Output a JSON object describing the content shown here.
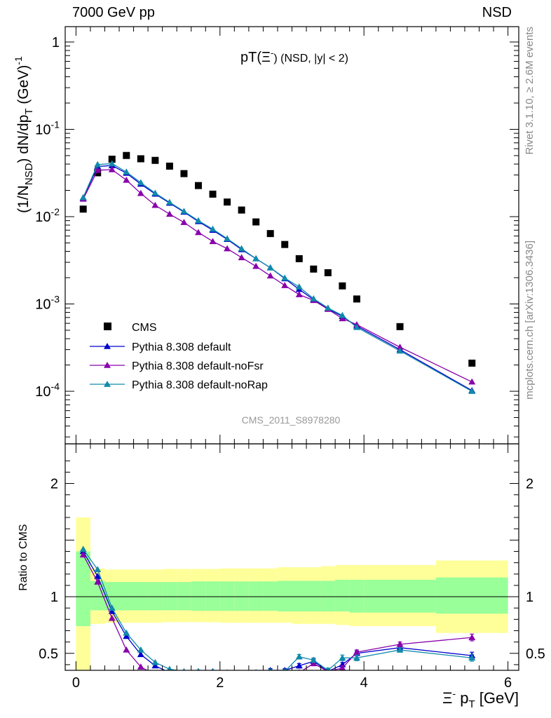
{
  "header": {
    "left": "7000 GeV pp",
    "right": "NSD"
  },
  "side_text": {
    "rivet": "Rivet 3.1.10, ≥ 2.6M events",
    "site": "mcplots.cern.ch [arXiv:1306.3436]"
  },
  "chart_data": [
    {
      "panel": "main",
      "type": "scatter",
      "title_main": "pT(Ξ",
      "title_sup": "-",
      "title_rest": ") (NSD, |y| < 2)",
      "ylabel_pre": "(1/N",
      "ylabel_sub": "NSD",
      "ylabel_mid": ") dN/dp",
      "ylabel_sub2": "T",
      "ylabel_post": " (GeV)",
      "ylabel_sup": "-1",
      "watermark": "CMS_2011_S8978280",
      "y_scale": "log",
      "xlim": [
        -0.15,
        6.15
      ],
      "ylim": [
        2.5e-05,
        1.5
      ],
      "y_ticks": [
        {
          "value": 0.0001,
          "base": "10",
          "exp": "-4"
        },
        {
          "value": 0.001,
          "base": "10",
          "exp": "-3"
        },
        {
          "value": 0.01,
          "base": "10",
          "exp": "-2"
        },
        {
          "value": 0.1,
          "base": "10",
          "exp": "-1"
        },
        {
          "value": 1,
          "base": "1",
          "exp": ""
        }
      ],
      "legend_position": "bottom-left",
      "series": [
        {
          "name": "CMS",
          "color": "#000000",
          "marker": "square",
          "line": false,
          "x": [
            0.1,
            0.3,
            0.5,
            0.7,
            0.9,
            1.1,
            1.3,
            1.5,
            1.7,
            1.9,
            2.1,
            2.3,
            2.5,
            2.7,
            2.9,
            3.1,
            3.3,
            3.5,
            3.7,
            3.9,
            4.5,
            5.5
          ],
          "y": [
            0.0122,
            0.0318,
            0.0455,
            0.0502,
            0.046,
            0.0441,
            0.0379,
            0.0311,
            0.0227,
            0.0181,
            0.0147,
            0.0119,
            0.0087,
            0.0064,
            0.0048,
            0.0033,
            0.00251,
            0.00228,
            0.00161,
            0.00114,
            0.00055,
            0.00021
          ]
        },
        {
          "name": "Pythia 8.308 default",
          "color": "#0000cc",
          "marker": "triangle",
          "line": true,
          "x": [
            0.1,
            0.3,
            0.5,
            0.7,
            0.9,
            1.1,
            1.3,
            1.5,
            1.7,
            1.9,
            2.1,
            2.3,
            2.5,
            2.7,
            2.9,
            3.1,
            3.3,
            3.5,
            3.7,
            3.9,
            4.5,
            5.5
          ],
          "y": [
            0.0163,
            0.0375,
            0.0385,
            0.0315,
            0.0236,
            0.0182,
            0.0143,
            0.0113,
            0.0088,
            0.007,
            0.0055,
            0.0042,
            0.0033,
            0.0026,
            0.00195,
            0.00147,
            0.00112,
            0.00088,
            0.00072,
            0.00056,
            0.0003,
            0.000102
          ]
        },
        {
          "name": "Pythia 8.308 default-noFsr",
          "color": "#8800aa",
          "marker": "triangle",
          "line": true,
          "x": [
            0.1,
            0.3,
            0.5,
            0.7,
            0.9,
            1.1,
            1.3,
            1.5,
            1.7,
            1.9,
            2.1,
            2.3,
            2.5,
            2.7,
            2.9,
            3.1,
            3.3,
            3.5,
            3.7,
            3.9,
            4.5,
            5.5
          ],
          "y": [
            0.0159,
            0.034,
            0.0346,
            0.0262,
            0.0185,
            0.0135,
            0.0107,
            0.0086,
            0.0066,
            0.0052,
            0.0043,
            0.0034,
            0.0027,
            0.0021,
            0.00163,
            0.00128,
            0.0011,
            0.00087,
            0.00068,
            0.00058,
            0.00032,
            0.000128
          ]
        },
        {
          "name": "Pythia 8.308 default-noRap",
          "color": "#118aaa",
          "marker": "triangle",
          "line": true,
          "x": [
            0.1,
            0.3,
            0.5,
            0.7,
            0.9,
            1.1,
            1.3,
            1.5,
            1.7,
            1.9,
            2.1,
            2.3,
            2.5,
            2.7,
            2.9,
            3.1,
            3.3,
            3.5,
            3.7,
            3.9,
            4.5,
            5.5
          ],
          "y": [
            0.0166,
            0.0395,
            0.0405,
            0.0325,
            0.0245,
            0.0186,
            0.0146,
            0.0115,
            0.009,
            0.0072,
            0.0056,
            0.0043,
            0.0033,
            0.0026,
            0.00198,
            0.00157,
            0.00115,
            0.0009,
            0.00074,
            0.00054,
            0.00029,
            0.0001
          ]
        }
      ]
    },
    {
      "panel": "ratio",
      "type": "line",
      "ylabel": "Ratio to CMS",
      "xlabel_main": "Ξ",
      "xlabel_sup": "-",
      "xlabel_mid": " p",
      "xlabel_sub": "T",
      "xlabel_post": " [GeV]",
      "xlim": [
        -0.15,
        6.15
      ],
      "ylim": [
        0.35,
        2.35
      ],
      "x_ticks": [
        "0",
        "2",
        "4",
        "6"
      ],
      "y_ticks": [
        "0.5",
        "1",
        "2"
      ],
      "reference_line": 1,
      "bands": {
        "edges": [
          0.0,
          0.2,
          0.4,
          0.6,
          0.8,
          1.0,
          1.2,
          1.4,
          1.6,
          1.8,
          2.0,
          2.2,
          2.4,
          2.6,
          2.8,
          3.0,
          3.2,
          3.4,
          3.6,
          3.8,
          4.0,
          5.0,
          6.0
        ],
        "outer_color": "#ffff99",
        "inner_color": "#99ff99",
        "outer": [
          [
            0,
            1.7
          ],
          [
            0.76,
            1.25
          ],
          [
            0.77,
            1.24
          ],
          [
            0.77,
            1.24
          ],
          [
            0.77,
            1.24
          ],
          [
            0.77,
            1.24
          ],
          [
            0.775,
            1.245
          ],
          [
            0.775,
            1.245
          ],
          [
            0.775,
            1.245
          ],
          [
            0.775,
            1.245
          ],
          [
            0.77,
            1.25
          ],
          [
            0.77,
            1.25
          ],
          [
            0.77,
            1.25
          ],
          [
            0.77,
            1.25
          ],
          [
            0.77,
            1.26
          ],
          [
            0.76,
            1.26
          ],
          [
            0.76,
            1.26
          ],
          [
            0.76,
            1.27
          ],
          [
            0.75,
            1.28
          ],
          [
            0.74,
            1.28
          ],
          [
            0.74,
            1.28
          ],
          [
            0.68,
            1.32
          ]
        ],
        "inner": [
          [
            0.74,
            1.4
          ],
          [
            0.88,
            1.14
          ],
          [
            0.88,
            1.13
          ],
          [
            0.88,
            1.13
          ],
          [
            0.88,
            1.13
          ],
          [
            0.88,
            1.13
          ],
          [
            0.88,
            1.13
          ],
          [
            0.88,
            1.13
          ],
          [
            0.875,
            1.135
          ],
          [
            0.875,
            1.135
          ],
          [
            0.875,
            1.135
          ],
          [
            0.875,
            1.135
          ],
          [
            0.875,
            1.135
          ],
          [
            0.875,
            1.135
          ],
          [
            0.87,
            1.14
          ],
          [
            0.87,
            1.14
          ],
          [
            0.87,
            1.14
          ],
          [
            0.87,
            1.14
          ],
          [
            0.87,
            1.15
          ],
          [
            0.86,
            1.15
          ],
          [
            0.86,
            1.15
          ],
          [
            0.85,
            1.17
          ]
        ]
      },
      "series": [
        {
          "name": "Pythia 8.308 default",
          "color": "#0000cc",
          "x": [
            0.1,
            0.3,
            0.5,
            0.7,
            0.9,
            1.1,
            1.3,
            1.5,
            1.7,
            1.9,
            2.1,
            2.3,
            2.5,
            2.7,
            2.9,
            3.1,
            3.3,
            3.5,
            3.7,
            3.9,
            4.5,
            5.5
          ],
          "y": [
            1.4,
            1.18,
            0.87,
            0.65,
            0.49,
            0.39,
            0.33,
            0.3,
            0.34,
            0.34,
            0.32,
            0.31,
            0.33,
            0.35,
            0.35,
            0.39,
            0.43,
            0.34,
            0.4,
            0.5,
            0.55,
            0.48
          ],
          "err": [
            0,
            0,
            0,
            0,
            0,
            0,
            0,
            0,
            0.01,
            0.01,
            0.01,
            0.01,
            0.01,
            0.015,
            0.015,
            0.02,
            0.02,
            0.02,
            0.02,
            0.02,
            0.02,
            0.03
          ]
        },
        {
          "name": "Pythia 8.308 default-noFsr",
          "color": "#8800aa",
          "x": [
            0.1,
            0.3,
            0.5,
            0.7,
            0.9,
            1.1,
            1.3,
            1.5,
            1.7,
            1.9,
            2.1,
            2.3,
            2.5,
            2.7,
            2.9,
            3.1,
            3.3,
            3.5,
            3.7,
            3.9,
            4.5,
            5.5
          ],
          "y": [
            1.37,
            1.13,
            0.81,
            0.53,
            0.38,
            0.31,
            0.28,
            0.28,
            0.29,
            0.29,
            0.29,
            0.29,
            0.31,
            0.33,
            0.34,
            0.33,
            0.41,
            0.34,
            0.37,
            0.51,
            0.58,
            0.64
          ],
          "err": [
            0,
            0,
            0,
            0,
            0,
            0,
            0,
            0,
            0.01,
            0.01,
            0.01,
            0.01,
            0.01,
            0.015,
            0.015,
            0.02,
            0.02,
            0.02,
            0.02,
            0.02,
            0.02,
            0.03
          ]
        },
        {
          "name": "Pythia 8.308 default-noRap",
          "color": "#118aaa",
          "x": [
            0.1,
            0.3,
            0.5,
            0.7,
            0.9,
            1.1,
            1.3,
            1.5,
            1.7,
            1.9,
            2.1,
            2.3,
            2.5,
            2.7,
            2.9,
            3.1,
            3.3,
            3.5,
            3.7,
            3.9,
            4.5,
            5.5
          ],
          "y": [
            1.42,
            1.24,
            0.9,
            0.68,
            0.53,
            0.42,
            0.36,
            0.34,
            0.34,
            0.34,
            0.33,
            0.32,
            0.33,
            0.34,
            0.34,
            0.47,
            0.44,
            0.35,
            0.46,
            0.46,
            0.53,
            0.46
          ],
          "err": [
            0,
            0,
            0,
            0,
            0,
            0,
            0,
            0,
            0.01,
            0.01,
            0.01,
            0.01,
            0.01,
            0.015,
            0.015,
            0.02,
            0.02,
            0.02,
            0.025,
            0.025,
            0.02,
            0.03
          ]
        }
      ]
    }
  ]
}
